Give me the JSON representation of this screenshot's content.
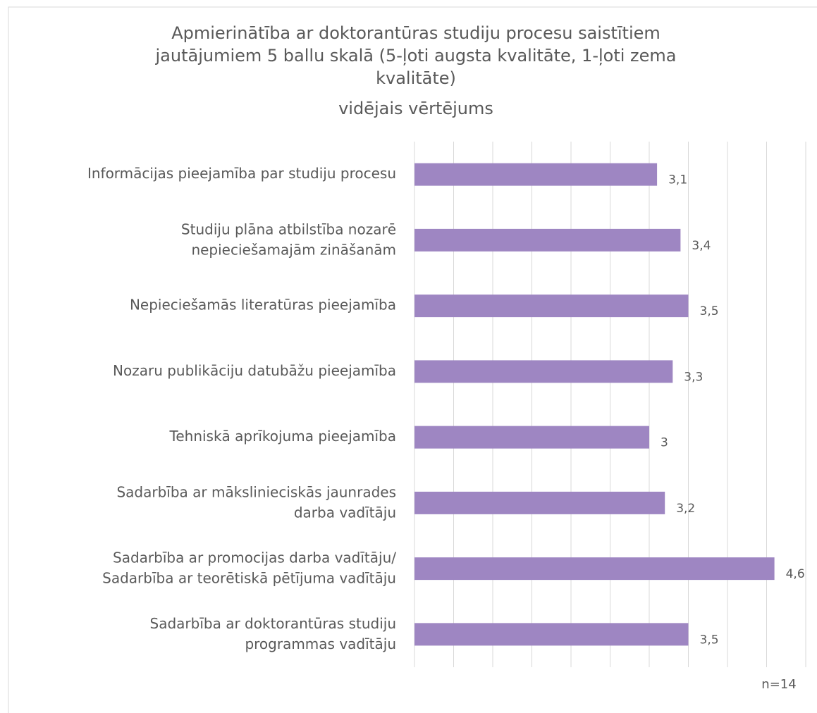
{
  "chart_data": {
    "type": "barh",
    "title": "Apmierinātība ar doktorantūras studiju procesu saistītiem\njautājumiem 5 ballu skalā (5-ļoti augsta kvalitāte, 1-ļoti zema\nkvalitāte)\nvidējais vērtējums",
    "categories": [
      "Informācijas pieejamība par studiju procesu",
      "Studiju plāna atbilstība nozarē\nnepieciešamajām zināšanām",
      "Nepieciešamās literatūras pieejamība",
      "Nozaru publikāciju datubāžu pieejamība",
      "Tehniskā aprīkojuma pieejamība",
      "Sadarbība ar mākslinieciskās jaunrades\ndarba vadītāju",
      "Sadarbība ar promocijas darba vadītāju/\nSadarbība ar teorētiskā pētījuma vadītāju",
      "Sadarbība ar doktorantūras studiju\nprogrammas vadītāju"
    ],
    "values": [
      3.1,
      3.4,
      3.5,
      3.3,
      3,
      3.2,
      4.6,
      3.5
    ],
    "value_labels": [
      "3,1",
      "3,4",
      "3,5",
      "3,3",
      "3",
      "3,2",
      "4,6",
      "3,5"
    ],
    "color": "#9e86c2",
    "xlim": [
      0,
      5
    ],
    "xticks": [
      0,
      0.5,
      1,
      1.5,
      2,
      2.5,
      3,
      3.5,
      4,
      4.5,
      5
    ],
    "grid": true,
    "annotation": "n=14"
  }
}
